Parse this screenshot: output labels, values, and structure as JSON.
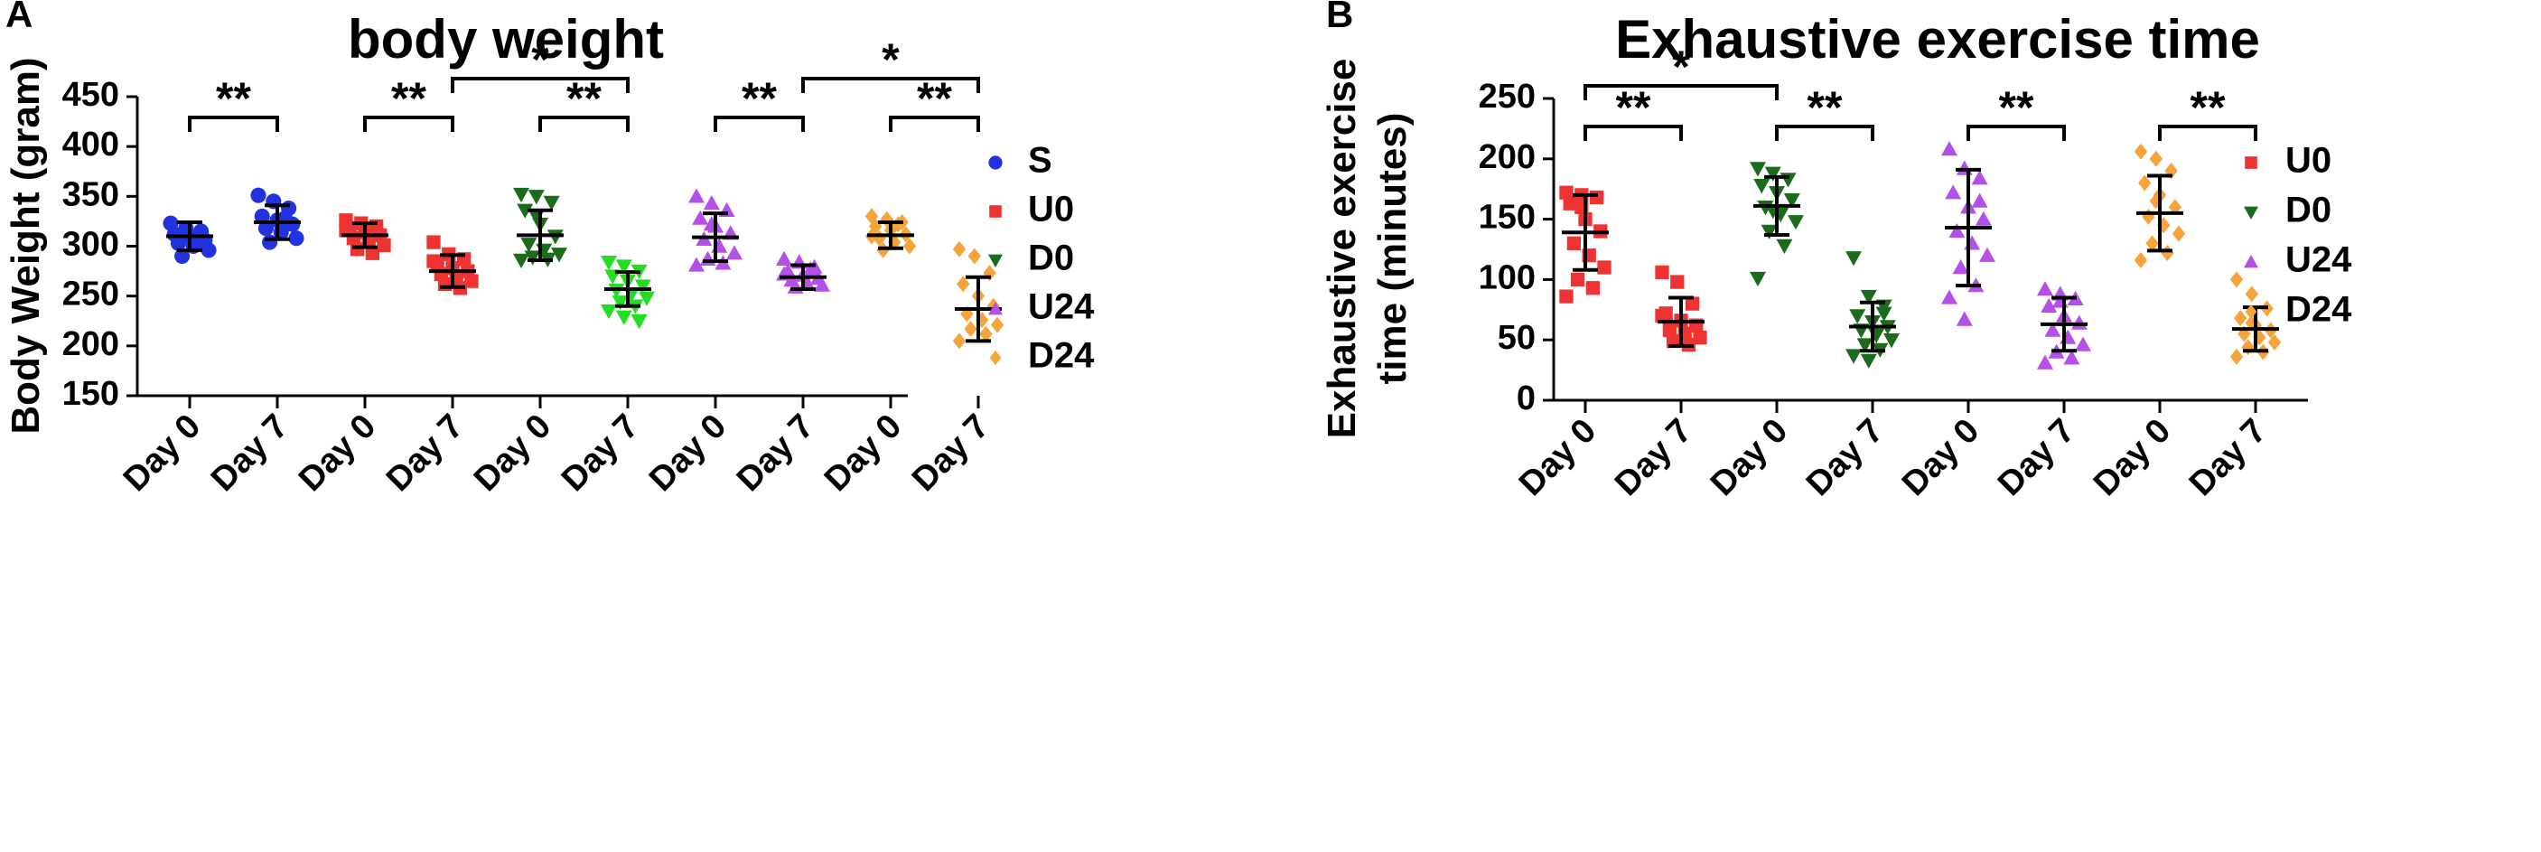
{
  "panels": [
    {
      "id": "A",
      "label": "A",
      "legend": [
        {
          "name": "S",
          "color": "#2233dd",
          "marker": "circle"
        },
        {
          "name": "U0",
          "color": "#ee3333",
          "marker": "square"
        },
        {
          "name": "D0",
          "color": "#1a6b1a",
          "marker": "triangle-down"
        },
        {
          "name": "U24",
          "color": "#b44fe8",
          "marker": "triangle-up"
        },
        {
          "name": "D24",
          "color": "#f7a33c",
          "marker": "diamond"
        }
      ]
    },
    {
      "id": "B",
      "label": "B",
      "legend": [
        {
          "name": "U0",
          "color": "#ee3333",
          "marker": "square"
        },
        {
          "name": "D0",
          "color": "#1a6b1a",
          "marker": "triangle-down"
        },
        {
          "name": "U24",
          "color": "#b44fe8",
          "marker": "triangle-up"
        },
        {
          "name": "D24",
          "color": "#f7a33c",
          "marker": "diamond"
        }
      ]
    }
  ],
  "chart_data": [
    {
      "panel": "A",
      "type": "scatter",
      "title": "body weight",
      "ylabel": "Body Weight (gram)",
      "ylim": [
        150,
        450
      ],
      "yticks": [
        "150",
        "200",
        "250",
        "300",
        "350",
        "400",
        "450"
      ],
      "categories": [
        "Day 0",
        "Day 7",
        "Day 0",
        "Day 7",
        "Day 0",
        "Day 7",
        "Day 0",
        "Day 7",
        "Day 0",
        "Day 7"
      ],
      "groups": [
        {
          "series": "S",
          "day": "Day 0",
          "color": "#2233dd",
          "marker": "circle",
          "mean": 310,
          "sd": 14,
          "points": [
            323,
            318,
            315,
            312,
            309,
            306,
            303,
            300,
            296,
            290,
            302
          ]
        },
        {
          "series": "S",
          "day": "Day 7",
          "color": "#2233dd",
          "marker": "circle",
          "mean": 324,
          "sd": 17,
          "points": [
            351,
            345,
            338,
            330,
            326,
            322,
            318,
            314,
            308,
            304,
            328
          ]
        },
        {
          "series": "U0",
          "day": "Day 0",
          "color": "#ee3333",
          "marker": "square",
          "mean": 311,
          "sd": 12,
          "points": [
            326,
            323,
            320,
            317,
            314,
            311,
            308,
            305,
            301,
            297,
            293,
            316
          ]
        },
        {
          "series": "U0",
          "day": "Day 7",
          "color": "#ee3333",
          "marker": "square",
          "mean": 275,
          "sd": 16,
          "points": [
            304,
            292,
            287,
            282,
            278,
            275,
            272,
            268,
            265,
            262,
            258,
            285
          ]
        },
        {
          "series": "D0",
          "day": "Day 0",
          "color": "#1a6b1a",
          "marker": "triangle-down",
          "mean": 311,
          "sd": 25,
          "points": [
            352,
            350,
            344,
            336,
            322,
            310,
            302,
            296,
            292,
            289,
            287,
            286,
            330
          ]
        },
        {
          "series": "D0",
          "day": "Day 7",
          "color": "#22dd22",
          "marker": "triangle-down",
          "mean": 257,
          "sd": 17,
          "points": [
            284,
            280,
            275,
            270,
            265,
            260,
            256,
            252,
            248,
            244,
            240,
            235,
            229,
            225
          ]
        },
        {
          "series": "U24",
          "day": "Day 0",
          "color": "#b44fe8",
          "marker": "triangle-up",
          "mean": 309,
          "sd": 24,
          "points": [
            350,
            343,
            336,
            328,
            320,
            313,
            307,
            300,
            293,
            287,
            283,
            281,
            322
          ]
        },
        {
          "series": "U24",
          "day": "Day 7",
          "color": "#b44fe8",
          "marker": "triangle-up",
          "mean": 269,
          "sd": 12,
          "points": [
            287,
            284,
            279,
            275,
            271,
            268,
            266,
            263,
            261,
            259,
            277,
            272
          ]
        },
        {
          "series": "D24",
          "day": "Day 0",
          "color": "#f7a33c",
          "marker": "diamond",
          "mean": 311,
          "sd": 13,
          "points": [
            330,
            327,
            324,
            320,
            316,
            312,
            308,
            304,
            300,
            296,
            322,
            310
          ]
        },
        {
          "series": "D24",
          "day": "Day 7",
          "color": "#f7a33c",
          "marker": "diamond",
          "mean": 237,
          "sd": 32,
          "points": [
            297,
            290,
            273,
            262,
            250,
            240,
            232,
            226,
            221,
            217,
            212,
            205
          ]
        }
      ],
      "significance": [
        {
          "from": 0,
          "to": 1,
          "level": 0,
          "label": "**"
        },
        {
          "from": 2,
          "to": 3,
          "level": 0,
          "label": "**"
        },
        {
          "from": 4,
          "to": 5,
          "level": 0,
          "label": "**"
        },
        {
          "from": 3,
          "to": 5,
          "level": 1,
          "label": "*"
        },
        {
          "from": 6,
          "to": 7,
          "level": 0,
          "label": "**"
        },
        {
          "from": 8,
          "to": 9,
          "level": 0,
          "label": "**"
        },
        {
          "from": 7,
          "to": 9,
          "level": 1,
          "label": "*"
        }
      ]
    },
    {
      "panel": "B",
      "type": "scatter",
      "title": "Exhaustive exercise time",
      "ylabel": [
        "Exhaustive exercise",
        "time (minutes)"
      ],
      "ylim": [
        0,
        250
      ],
      "yticks": [
        "0",
        "50",
        "100",
        "150",
        "200",
        "250"
      ],
      "categories": [
        "Day 0",
        "Day 7",
        "Day 0",
        "Day 7",
        "Day 0",
        "Day 7",
        "Day 0",
        "Day 7"
      ],
      "groups": [
        {
          "series": "U0",
          "day": "Day 0",
          "color": "#ee3333",
          "marker": "square",
          "mean": 139,
          "sd": 31,
          "points": [
            172,
            170,
            168,
            163,
            150,
            140,
            130,
            120,
            110,
            100,
            93,
            86,
            160
          ]
        },
        {
          "series": "U0",
          "day": "Day 7",
          "color": "#ee3333",
          "marker": "square",
          "mean": 65,
          "sd": 20,
          "points": [
            106,
            98,
            80,
            72,
            66,
            62,
            58,
            55,
            52,
            49,
            46,
            70
          ]
        },
        {
          "series": "D0",
          "day": "Day 0",
          "color": "#1a6b1a",
          "marker": "triangle-down",
          "mean": 161,
          "sd": 24,
          "points": [
            192,
            188,
            183,
            178,
            172,
            166,
            160,
            154,
            148,
            140,
            128,
            101,
            157
          ]
        },
        {
          "series": "D0",
          "day": "Day 7",
          "color": "#1a6b1a",
          "marker": "triangle-down",
          "mean": 61,
          "sd": 20,
          "points": [
            118,
            86,
            78,
            70,
            65,
            61,
            58,
            54,
            50,
            46,
            42,
            37,
            33,
            72
          ]
        },
        {
          "series": "U24",
          "day": "Day 0",
          "color": "#b44fe8",
          "marker": "triangle-up",
          "mean": 143,
          "sd": 48,
          "points": [
            208,
            192,
            184,
            172,
            160,
            150,
            140,
            130,
            120,
            110,
            95,
            85,
            67,
            165
          ]
        },
        {
          "series": "U24",
          "day": "Day 7",
          "color": "#b44fe8",
          "marker": "triangle-up",
          "mean": 63,
          "sd": 22,
          "points": [
            92,
            88,
            84,
            78,
            70,
            64,
            58,
            52,
            46,
            40,
            35,
            31,
            82
          ]
        },
        {
          "series": "D24",
          "day": "Day 0",
          "color": "#f7a33c",
          "marker": "diamond",
          "mean": 155,
          "sd": 31,
          "points": [
            206,
            200,
            190,
            180,
            170,
            160,
            152,
            145,
            138,
            130,
            122,
            116,
            165
          ]
        },
        {
          "series": "D24",
          "day": "Day 7",
          "color": "#f7a33c",
          "marker": "diamond",
          "mean": 59,
          "sd": 18,
          "points": [
            100,
            88,
            76,
            68,
            62,
            58,
            55,
            52,
            48,
            44,
            40,
            36,
            64
          ]
        }
      ],
      "significance": [
        {
          "from": 0,
          "to": 1,
          "level": 0,
          "label": "**"
        },
        {
          "from": 0,
          "to": 2,
          "level": 1,
          "label": "*"
        },
        {
          "from": 2,
          "to": 3,
          "level": 0,
          "label": "**"
        },
        {
          "from": 4,
          "to": 5,
          "level": 0,
          "label": "**"
        },
        {
          "from": 6,
          "to": 7,
          "level": 0,
          "label": "**"
        }
      ]
    }
  ]
}
